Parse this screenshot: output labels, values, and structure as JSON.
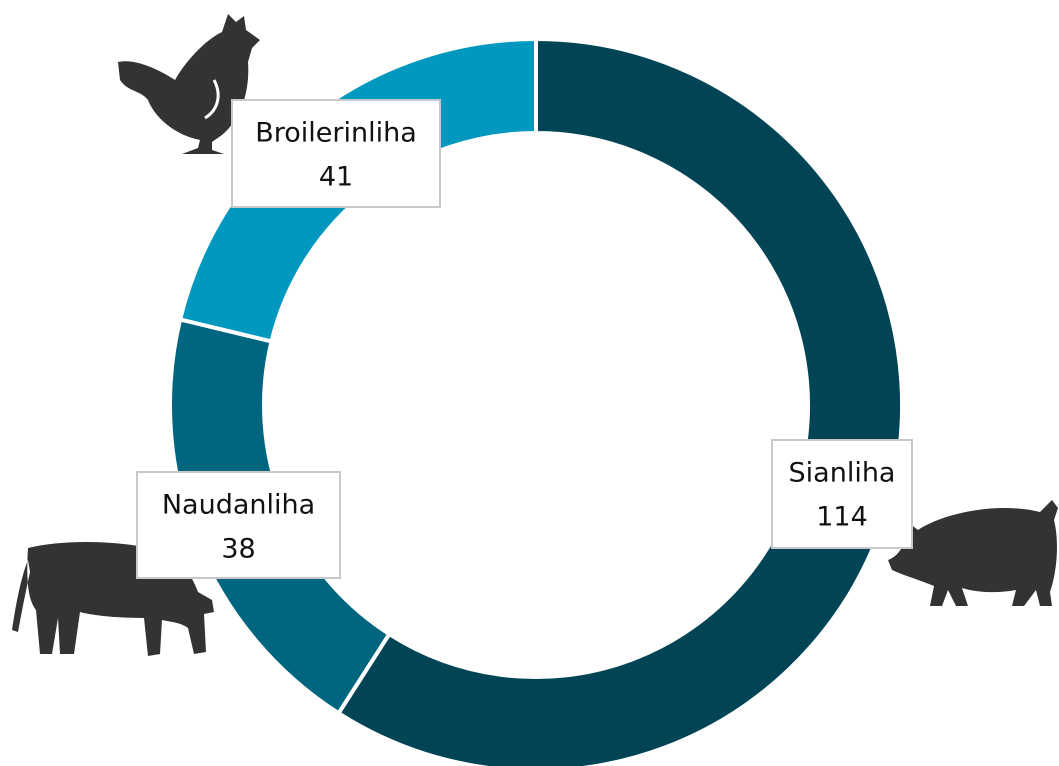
{
  "chart_data": {
    "type": "donut",
    "categories": [
      "Sianliha",
      "Naudanliha",
      "Broilerinliha"
    ],
    "values": [
      114,
      38,
      41
    ],
    "colors": [
      "#004455",
      "#00657f",
      "#0098bf"
    ]
  }
}
